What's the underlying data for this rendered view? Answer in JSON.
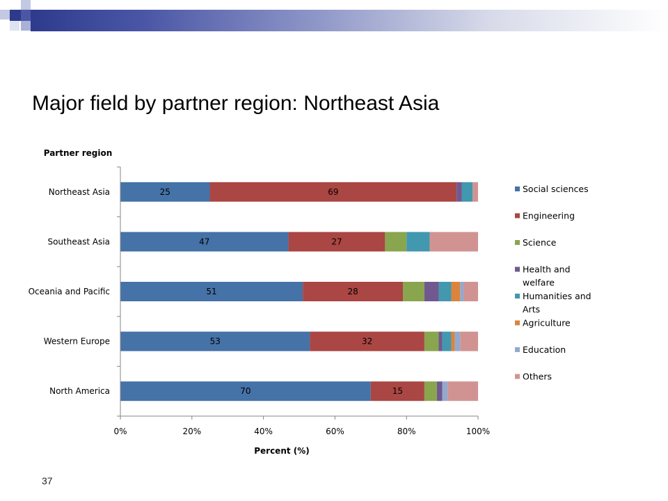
{
  "slide": {
    "title": "Major field by partner region: Northeast Asia",
    "number": "37"
  },
  "colors": {
    "header_dark": "#2e3a8c",
    "header_mid": "#8f97c8"
  },
  "chart_data": {
    "type": "bar",
    "orientation": "horizontal",
    "stacked": true,
    "normalized_percent": true,
    "ylabel": "Partner region",
    "xlabel": "Percent (%)",
    "x_ticks": [
      "0%",
      "20%",
      "40%",
      "60%",
      "80%",
      "100%"
    ],
    "xlim": [
      0,
      100
    ],
    "legend_position": "right",
    "categories": [
      "Northeast Asia",
      "Southeast Asia",
      "Oceania and Pacific",
      "Western Europe",
      "North America"
    ],
    "series": [
      {
        "name": "Social sciences",
        "color": "#4572a7",
        "values": [
          25,
          47,
          51,
          53,
          70
        ]
      },
      {
        "name": "Engineering",
        "color": "#aa4643",
        "values": [
          69,
          27,
          28,
          32,
          15
        ]
      },
      {
        "name": "Science",
        "color": "#89a54e",
        "values": [
          0,
          6,
          6,
          4,
          3.5
        ]
      },
      {
        "name": "Health and welfare",
        "color": "#71588f",
        "values": [
          1.5,
          0,
          4,
          1,
          1.5
        ]
      },
      {
        "name": "Humanities and Arts",
        "color": "#4198af",
        "values": [
          3,
          6.5,
          3.5,
          2.5,
          0
        ]
      },
      {
        "name": "Agriculture",
        "color": "#db843d",
        "values": [
          0,
          0,
          2.5,
          1,
          0
        ]
      },
      {
        "name": "Education",
        "color": "#93a9cf",
        "values": [
          0,
          0,
          1,
          1.5,
          1.5
        ]
      },
      {
        "name": "Others",
        "color": "#d19392",
        "values": [
          1.5,
          13.5,
          4,
          5,
          8.5
        ]
      }
    ],
    "data_labels": [
      [
        "25",
        "69"
      ],
      [
        "47",
        "27"
      ],
      [
        "51",
        "28"
      ],
      [
        "53",
        "32"
      ],
      [
        "70",
        "15"
      ]
    ]
  }
}
